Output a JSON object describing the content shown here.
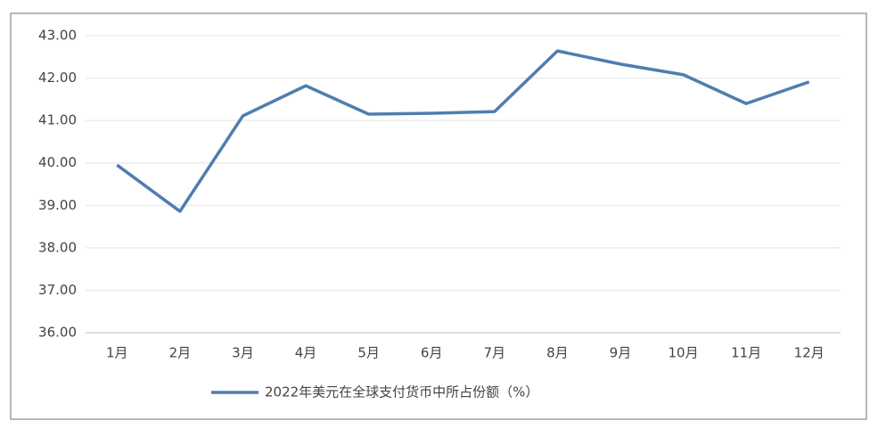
{
  "chart_data": {
    "type": "line",
    "categories": [
      "1月",
      "2月",
      "3月",
      "4月",
      "5月",
      "6月",
      "7月",
      "8月",
      "9月",
      "10月",
      "11月",
      "12月"
    ],
    "series": [
      {
        "name": "2022年美元在全球支付货币中所占份额（%）",
        "color": "#4f7db0",
        "values": [
          39.95,
          38.86,
          41.11,
          41.82,
          41.15,
          41.17,
          41.21,
          42.64,
          42.33,
          42.08,
          41.4,
          41.91
        ]
      }
    ],
    "ylim": [
      36,
      43
    ],
    "yticks": [
      {
        "value": 36,
        "label": "36.00"
      },
      {
        "value": 37,
        "label": "37.00"
      },
      {
        "value": 38,
        "label": "38.00"
      },
      {
        "value": 39,
        "label": "39.00"
      },
      {
        "value": 40,
        "label": "40.00"
      },
      {
        "value": 41,
        "label": "41.00"
      },
      {
        "value": 42,
        "label": "42.00"
      },
      {
        "value": 43,
        "label": "43.00"
      }
    ],
    "grid": true,
    "legend": "bottom"
  }
}
